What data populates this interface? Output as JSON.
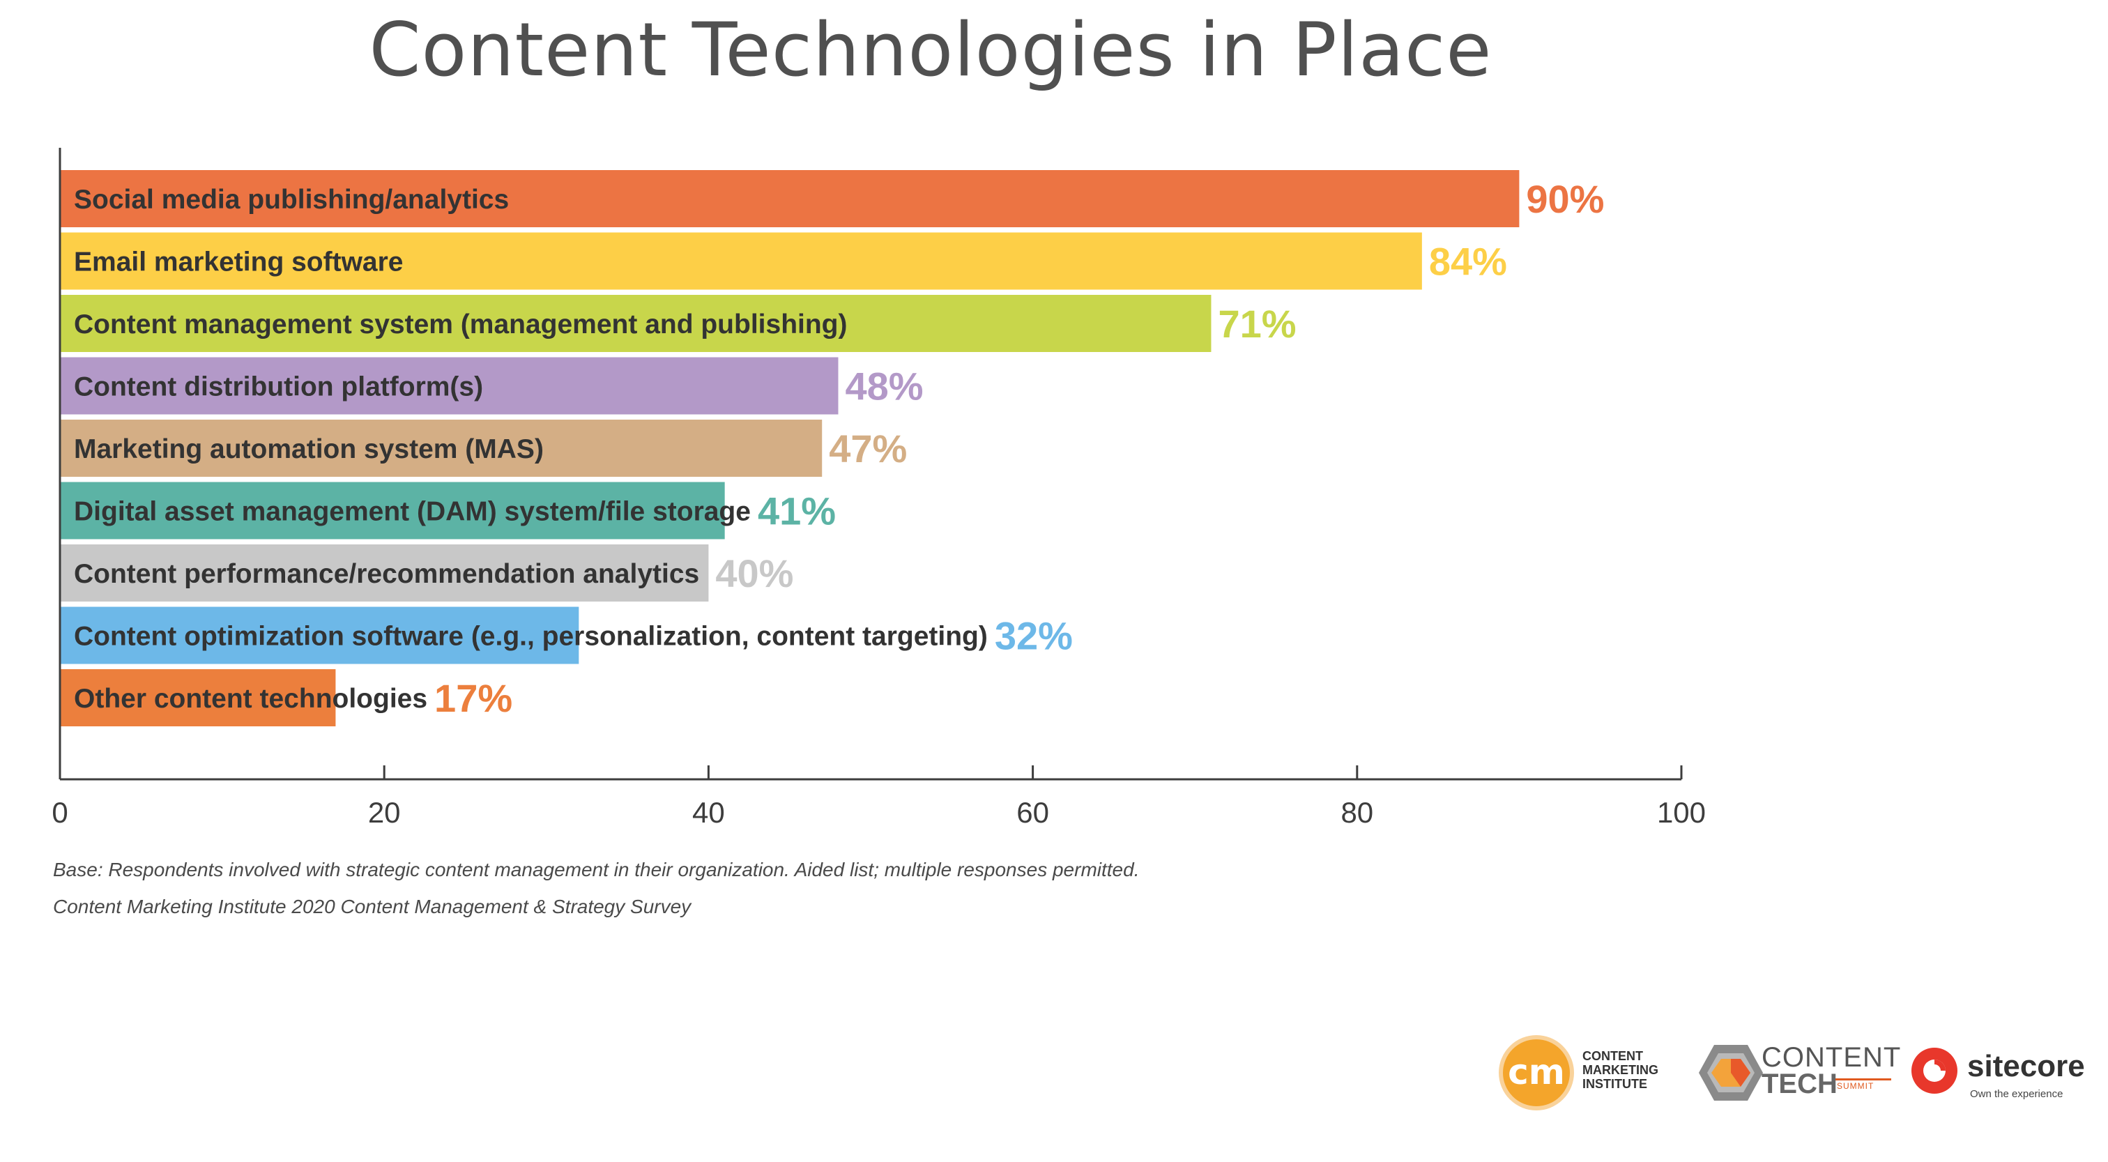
{
  "chart_data": {
    "type": "bar",
    "orientation": "horizontal",
    "title": "Content Technologies in Place",
    "xlim": [
      0,
      100
    ],
    "xticks": [
      "0",
      "20",
      "40",
      "60",
      "80",
      "100"
    ],
    "categories": [
      "Social media publishing/analytics",
      "Email marketing software",
      "Content management system (management and publishing)",
      "Content distribution platform(s)",
      "Marketing automation system (MAS)",
      "Digital asset management (DAM) system/file storage",
      "Content performance/recommendation analytics",
      "Content optimization software (e.g., personalization, content targeting)",
      "Other content technologies"
    ],
    "values": [
      90,
      84,
      71,
      48,
      47,
      41,
      40,
      32,
      17
    ],
    "value_labels": [
      "90%",
      "84%",
      "71%",
      "48%",
      "47%",
      "41%",
      "40%",
      "32%",
      "17%"
    ],
    "colors": [
      "#ec7443",
      "#fdcf47",
      "#c8d64b",
      "#b399c8",
      "#d4ae85",
      "#5cb3a5",
      "#c8c8c8",
      "#6db8e8",
      "#ec7f3d"
    ],
    "grid": false,
    "legend": "none"
  },
  "footnotes": {
    "base": "Base: Respondents involved with strategic content management in their organization. Aided list; multiple responses permitted.",
    "source": "Content Marketing Institute 2020 Content Management & Strategy Survey"
  },
  "logos": {
    "cmi": {
      "mark": "cm",
      "lines": [
        "CONTENT",
        "MARKETING",
        "INSTITUTE"
      ]
    },
    "content_tech": {
      "line1": "CONTENT",
      "line2": "TECH",
      "line3": "SUMMIT"
    },
    "sitecore": {
      "name": "sitecore",
      "tagline": "Own the experience"
    }
  },
  "colors": {
    "title": "#505050",
    "axis": "#3d3d3d",
    "label_text": "#333333"
  }
}
